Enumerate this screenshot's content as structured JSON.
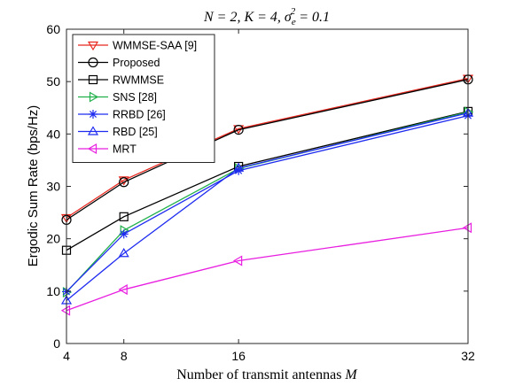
{
  "chart_data": {
    "type": "line",
    "title": "N = 2, K = 4, σ_e² = 0.1",
    "title_parts": {
      "main": "N = 2, K = 4, σ",
      "sub": "e",
      "sup": "2",
      "tail": " = 0.1"
    },
    "xlabel": "Number of transmit antennas",
    "xlabel_var": "M",
    "ylabel": "Ergodic Sum Rate (bps/Hz)",
    "x": [
      4,
      8,
      16,
      32
    ],
    "xticks": [
      "4",
      "8",
      "16",
      "32"
    ],
    "xlim": [
      4,
      32
    ],
    "ylim": [
      0,
      60
    ],
    "yticks": [
      "0",
      "10",
      "20",
      "30",
      "40",
      "50",
      "60"
    ],
    "grid": false,
    "legend_position": "top-left",
    "series": [
      {
        "name": "WMMSE-SAA [9]",
        "color": "#e8281e",
        "marker": "triangle-down",
        "values": [
          24.0,
          31.2,
          41.0,
          50.6
        ]
      },
      {
        "name": "Proposed",
        "color": "#000000",
        "marker": "circle",
        "values": [
          23.6,
          30.8,
          40.8,
          50.4
        ]
      },
      {
        "name": "RWMMSE",
        "color": "#000000",
        "marker": "square",
        "values": [
          17.8,
          24.2,
          33.8,
          44.3
        ]
      },
      {
        "name": "SNS [28]",
        "color": "#22b04b",
        "marker": "triangle-right",
        "values": [
          9.8,
          21.6,
          33.4,
          44.2
        ]
      },
      {
        "name": "RRBD [26]",
        "color": "#1f2cf0",
        "marker": "asterisk",
        "values": [
          9.9,
          20.9,
          33.0,
          43.5
        ]
      },
      {
        "name": "RBD [25]",
        "color": "#1f2cf0",
        "marker": "triangle-up",
        "values": [
          8.2,
          17.2,
          33.5,
          44.0
        ]
      },
      {
        "name": "MRT",
        "color": "#e81ee0",
        "marker": "triangle-left",
        "values": [
          6.3,
          10.3,
          15.8,
          22.1
        ]
      }
    ]
  }
}
